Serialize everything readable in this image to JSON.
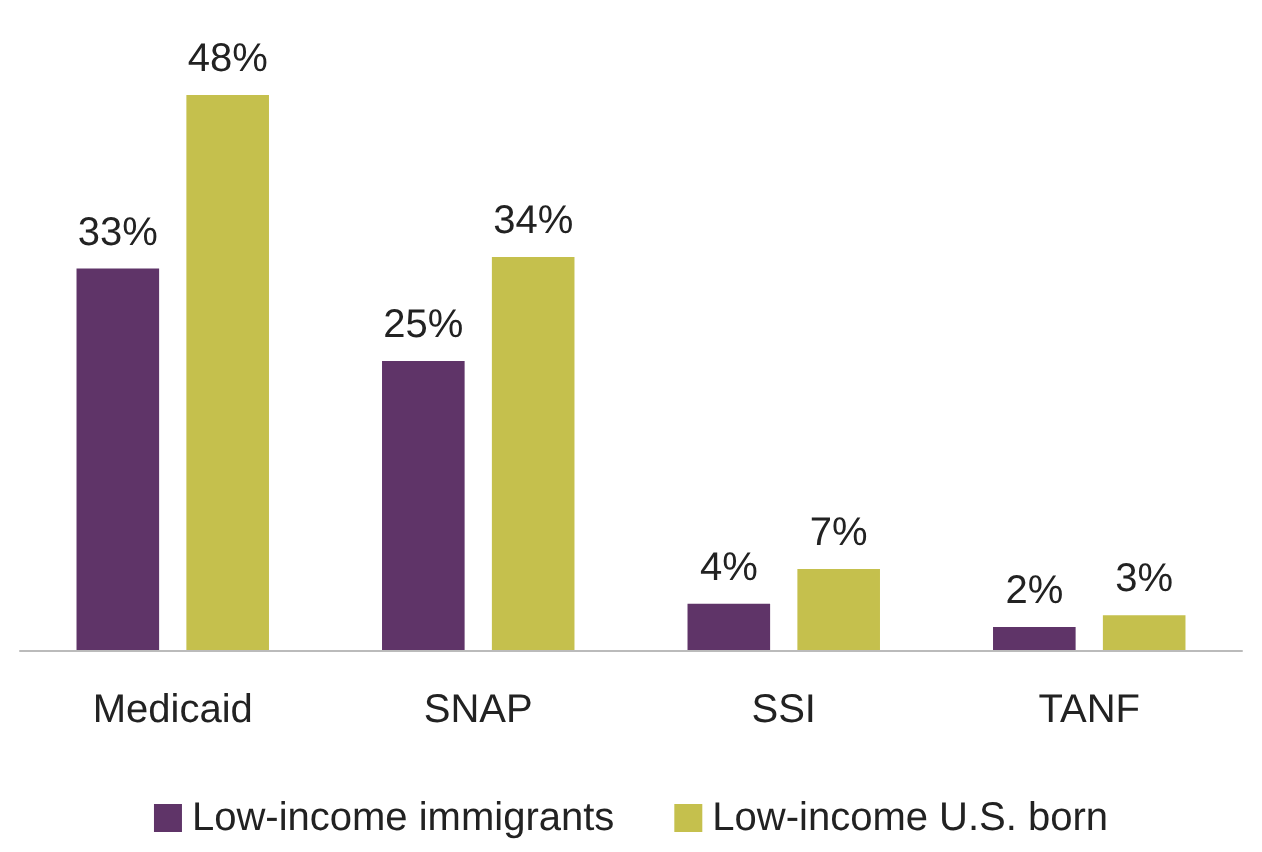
{
  "chart_data": {
    "type": "bar",
    "categories": [
      "Medicaid",
      "SNAP",
      "SSI",
      "TANF"
    ],
    "series": [
      {
        "name": "Low-income immigrants",
        "color": "#5f3468",
        "values": [
          33,
          25,
          4,
          2
        ],
        "value_labels": [
          "33%",
          "25%",
          "4%",
          "2%"
        ]
      },
      {
        "name": "Low-income U.S. born",
        "color": "#c5c04d",
        "values": [
          48,
          34,
          7,
          3
        ],
        "value_labels": [
          "48%",
          "34%",
          "7%",
          "3%"
        ]
      }
    ],
    "legend": "bottom"
  }
}
